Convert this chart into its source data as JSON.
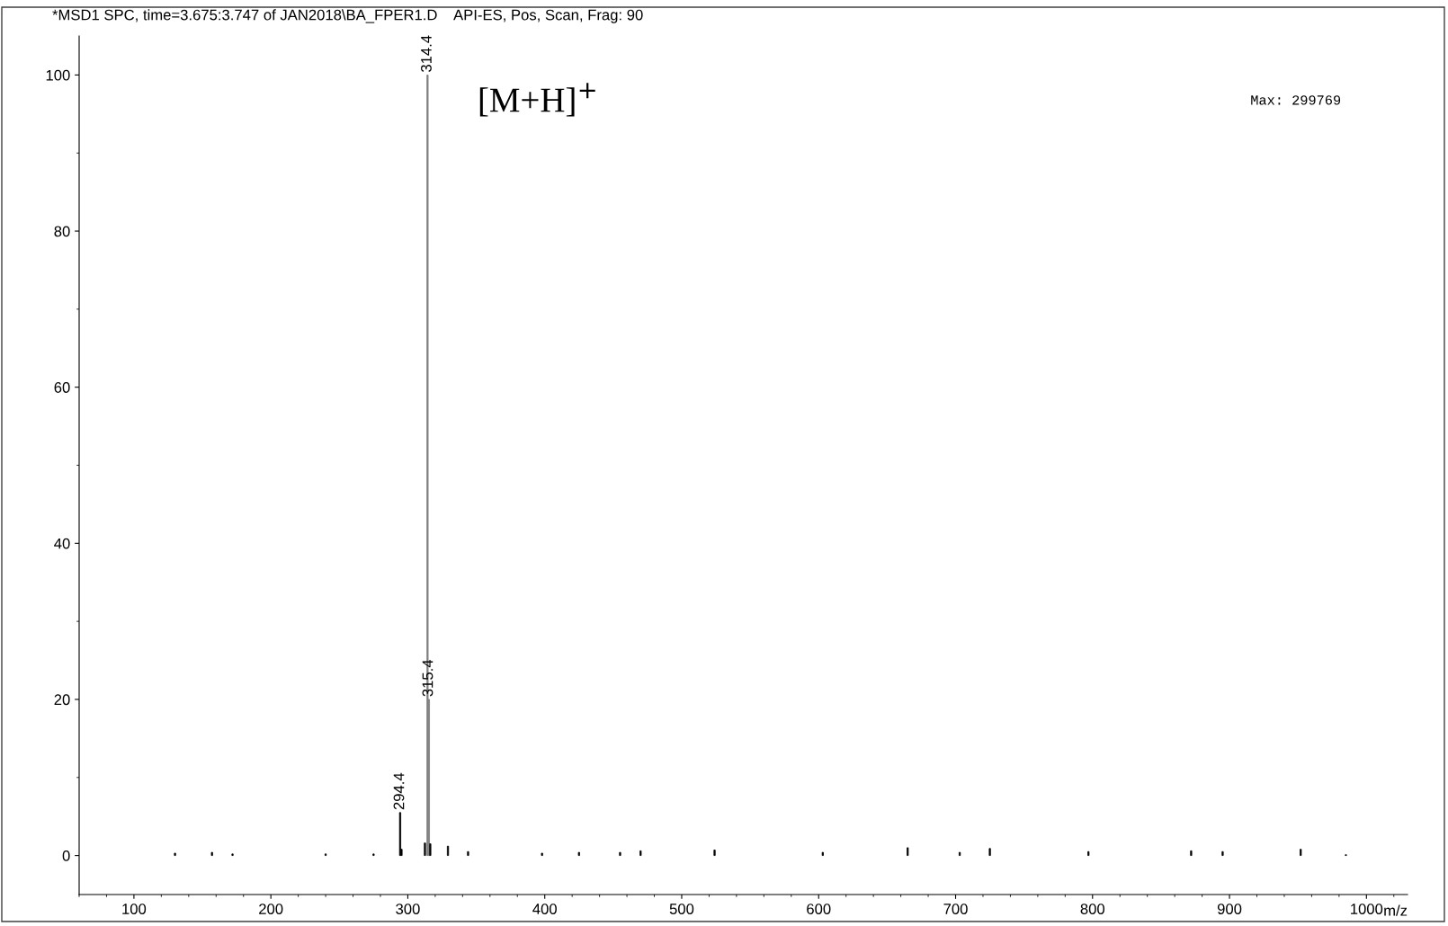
{
  "chart_data": {
    "type": "bar",
    "title": "*MSD1 SPC, time=3.675:3.747 of JAN2018\\BA_FPER1.D    API-ES, Pos, Scan, Frag: 90",
    "xlabel": "m/z",
    "x": [
      130,
      157,
      172,
      240,
      275,
      294.4,
      295.4,
      312.5,
      314.4,
      315.4,
      316.4,
      329.3,
      344,
      398,
      425,
      455,
      470,
      524,
      603,
      665,
      703,
      725,
      797,
      872,
      895,
      952,
      985
    ],
    "values": [
      0.3,
      0.4,
      0.2,
      0.2,
      0.2,
      5.5,
      0.8,
      1.6,
      100,
      20,
      1.5,
      1.2,
      0.5,
      0.3,
      0.4,
      0.4,
      0.6,
      0.7,
      0.4,
      1.0,
      0.4,
      0.9,
      0.5,
      0.6,
      0.5,
      0.8,
      0.1
    ],
    "colors": [
      "#000000",
      "#000000",
      "#000000",
      "#000000",
      "#000000",
      "#000000",
      "#000000",
      "#000000",
      "#808080",
      "#808080",
      "#000000",
      "#000000",
      "#000000",
      "#000000",
      "#000000",
      "#000000",
      "#000000",
      "#000000",
      "#000000",
      "#000000",
      "#000000",
      "#000000",
      "#000000",
      "#000000",
      "#000000",
      "#000000",
      "#000000"
    ],
    "xlim": [
      60,
      1030
    ],
    "ylim": [
      -5,
      105
    ],
    "xticks": [
      100,
      200,
      300,
      400,
      500,
      600,
      700,
      800,
      900,
      1000
    ],
    "yticks": [
      0,
      20,
      40,
      60,
      80,
      100
    ],
    "annotations": [
      {
        "text": "294.4",
        "x": 294.4,
        "y": 5.5
      },
      {
        "text": "314.4",
        "x": 314.4,
        "y": 100
      },
      {
        "text": "315.4",
        "x": 315.4,
        "y": 20
      },
      {
        "text": "[M+H]$^{+}$",
        "x": 314.4,
        "y": 100
      },
      "Max: 299769"
    ],
    "grid": false,
    "legend": false
  }
}
